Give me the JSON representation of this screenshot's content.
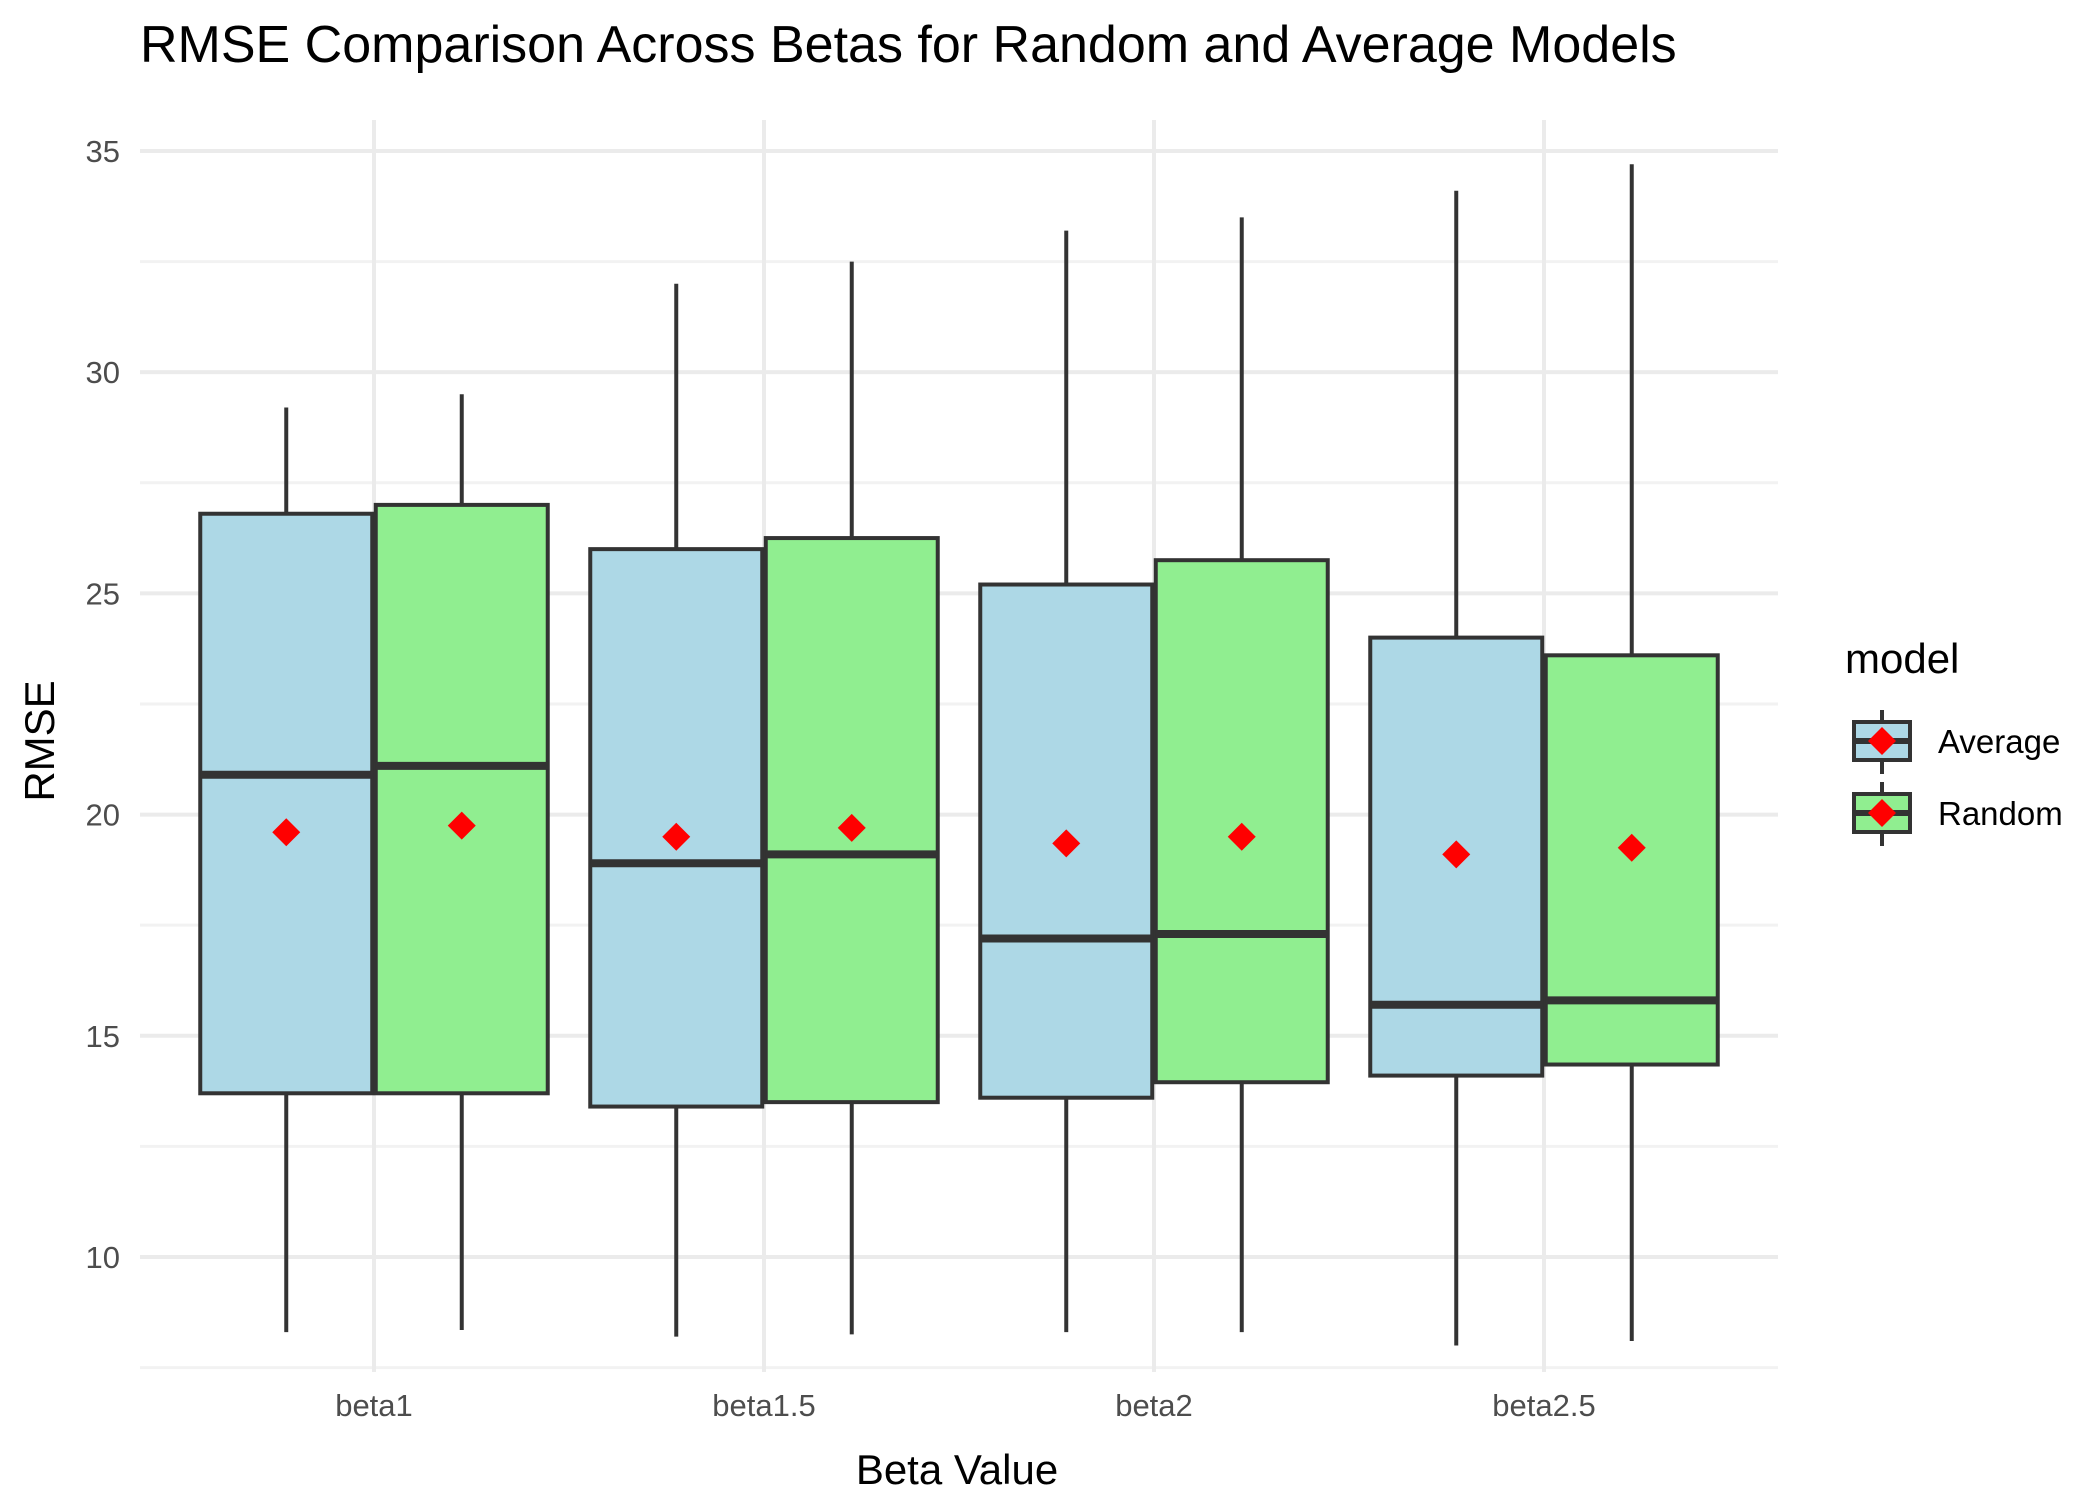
{
  "chart_data": {
    "type": "boxplot",
    "title": "RMSE Comparison Across Betas for Random and Average Models",
    "xlabel": "Beta Value",
    "ylabel": "RMSE",
    "categories": [
      "beta1",
      "beta1.5",
      "beta2",
      "beta2.5"
    ],
    "ylim": [
      7.4,
      35.7
    ],
    "yticks": [
      10,
      15,
      20,
      25,
      30,
      35
    ],
    "grid": true,
    "legend": {
      "title": "model",
      "placement": "right"
    },
    "mean_marker_color": "#ff0000",
    "series": [
      {
        "name": "Average",
        "color": "#add8e6",
        "boxes": [
          {
            "whisker_low": 8.3,
            "q1": 13.7,
            "median": 20.9,
            "q3": 26.8,
            "whisker_high": 29.2,
            "mean": 19.6
          },
          {
            "whisker_low": 8.2,
            "q1": 13.4,
            "median": 18.9,
            "q3": 26.0,
            "whisker_high": 32.0,
            "mean": 19.5
          },
          {
            "whisker_low": 8.3,
            "q1": 13.6,
            "median": 17.2,
            "q3": 25.2,
            "whisker_high": 33.2,
            "mean": 19.35
          },
          {
            "whisker_low": 8.0,
            "q1": 14.1,
            "median": 15.7,
            "q3": 24.0,
            "whisker_high": 34.1,
            "mean": 19.1
          }
        ]
      },
      {
        "name": "Random",
        "color": "#90ee90",
        "boxes": [
          {
            "whisker_low": 8.35,
            "q1": 13.7,
            "median": 21.1,
            "q3": 27.0,
            "whisker_high": 29.5,
            "mean": 19.75
          },
          {
            "whisker_low": 8.25,
            "q1": 13.5,
            "median": 19.1,
            "q3": 26.25,
            "whisker_high": 32.5,
            "mean": 19.7
          },
          {
            "whisker_low": 8.3,
            "q1": 13.95,
            "median": 17.3,
            "q3": 25.75,
            "whisker_high": 33.5,
            "mean": 19.5
          },
          {
            "whisker_low": 8.1,
            "q1": 14.35,
            "median": 15.8,
            "q3": 23.6,
            "whisker_high": 34.7,
            "mean": 19.25
          }
        ]
      }
    ]
  }
}
